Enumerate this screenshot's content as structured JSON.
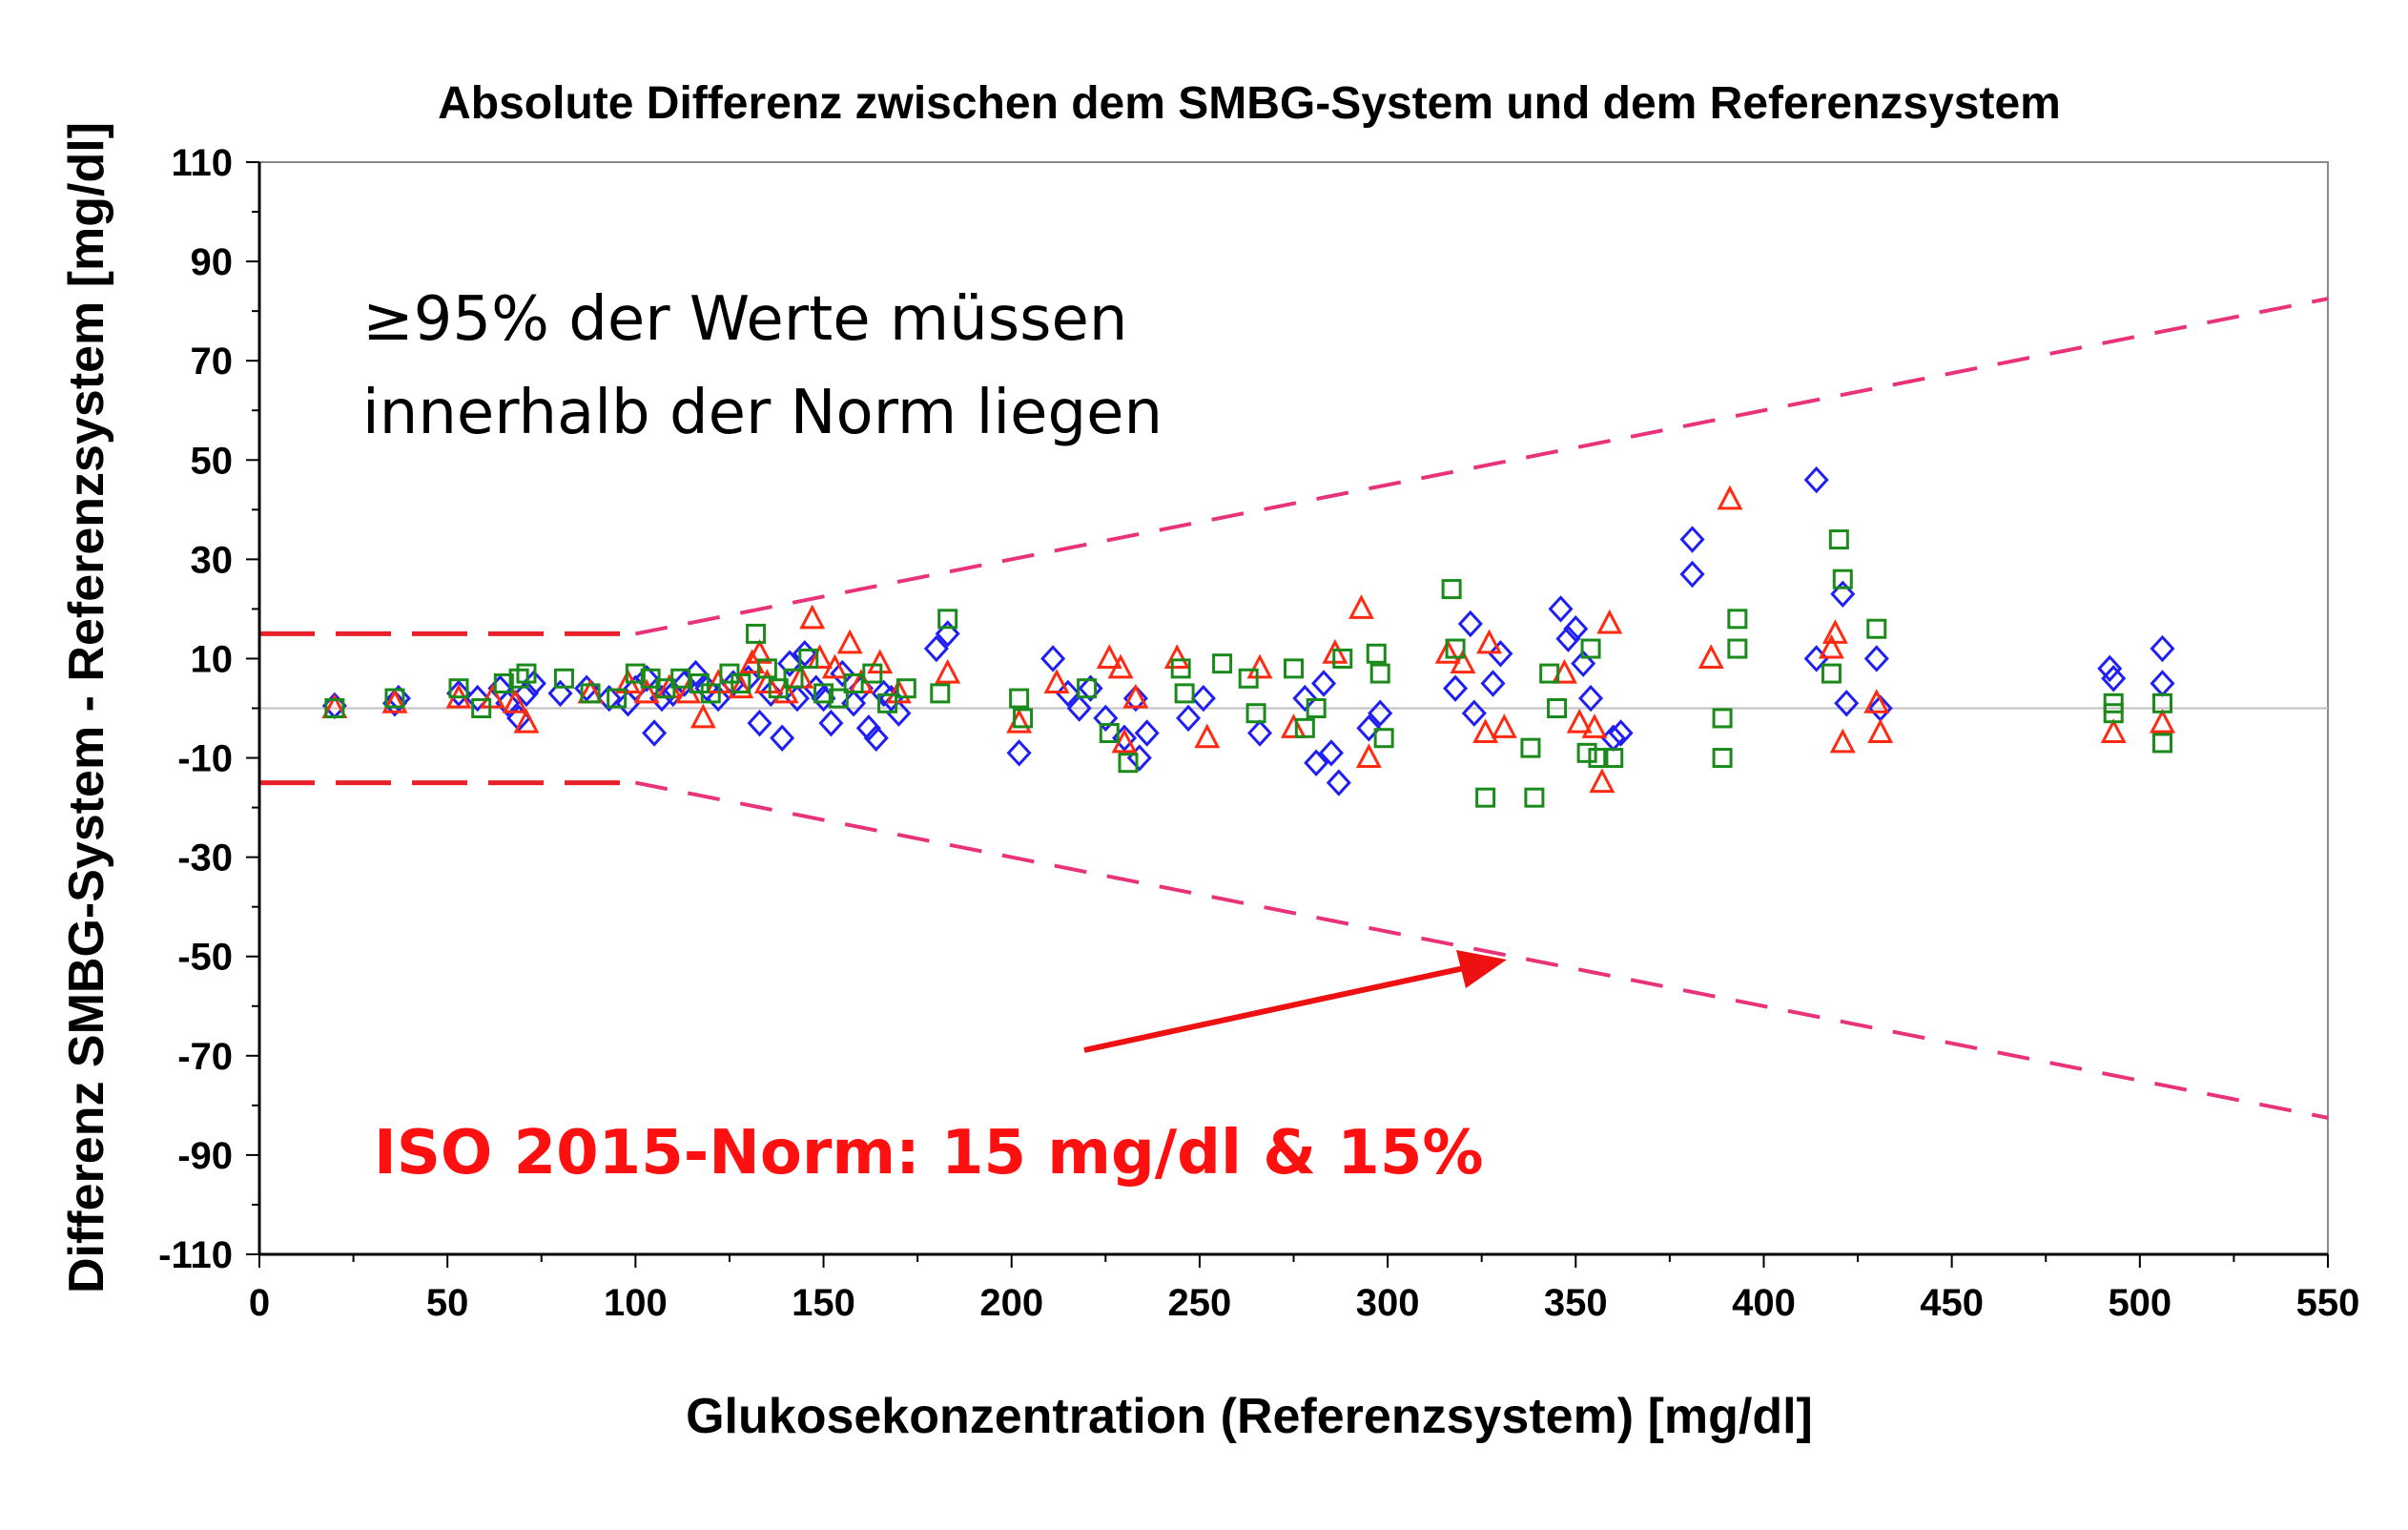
{
  "colors": {
    "diamond": "#1f1ff5",
    "triangle": "#ff2a10",
    "square": "#1a8a1a",
    "limit_line": "#e8327a",
    "limit_flat": "#e8202a",
    "arrow": "#ee1111",
    "norm_text": "#ff1010",
    "zero_line": "#c0c0c0"
  },
  "annotations": {
    "note_line1": "≥95% der Werte müssen",
    "note_line2": "innerhalb der Norm liegen",
    "norm_label": "ISO 2015-Norm: 15 mg/dl & 15%"
  },
  "chart_data": {
    "type": "scatter",
    "title": "Absolute Differenz zwischen dem SMBG-System und dem Referenzsystem",
    "xlabel": "Glukosekonzentration (Referenzsystem) [mg/dl]",
    "ylabel": "Differenz SMBG-System - Referenzsystem [mg/dl]",
    "xlim": [
      0,
      550
    ],
    "ylim": [
      -110,
      110
    ],
    "x_ticks": [
      0,
      50,
      100,
      150,
      200,
      250,
      300,
      350,
      400,
      450,
      500,
      550
    ],
    "y_ticks": [
      110,
      90,
      70,
      50,
      30,
      10,
      -10,
      -30,
      -50,
      -70,
      -90,
      -110
    ],
    "grid": false,
    "limits": {
      "upper": [
        [
          0,
          15
        ],
        [
          100,
          15
        ],
        [
          550,
          82.5
        ]
      ],
      "lower": [
        [
          0,
          -15
        ],
        [
          100,
          -15
        ],
        [
          550,
          -82.5
        ]
      ]
    },
    "series": [
      {
        "marker": "diamond",
        "points": [
          [
            20,
            0.5
          ],
          [
            36,
            1
          ],
          [
            37,
            2
          ],
          [
            53,
            3
          ],
          [
            58,
            2
          ],
          [
            64,
            4
          ],
          [
            66,
            1
          ],
          [
            69,
            -2
          ],
          [
            71,
            3
          ],
          [
            73,
            5
          ],
          [
            80,
            3
          ],
          [
            87,
            4
          ],
          [
            93,
            2
          ],
          [
            98,
            1
          ],
          [
            100,
            4
          ],
          [
            103,
            6
          ],
          [
            105,
            -5
          ],
          [
            107,
            2
          ],
          [
            110,
            3
          ],
          [
            113,
            5
          ],
          [
            116,
            7
          ],
          [
            119,
            4
          ],
          [
            122,
            2
          ],
          [
            126,
            5
          ],
          [
            130,
            6
          ],
          [
            133,
            -3
          ],
          [
            136,
            3
          ],
          [
            139,
            -6
          ],
          [
            141,
            9
          ],
          [
            143,
            2
          ],
          [
            145,
            11
          ],
          [
            148,
            4
          ],
          [
            150,
            2
          ],
          [
            152,
            -3
          ],
          [
            155,
            7
          ],
          [
            158,
            1
          ],
          [
            160,
            4
          ],
          [
            162,
            -4
          ],
          [
            164,
            -6
          ],
          [
            166,
            3
          ],
          [
            168,
            2
          ],
          [
            170,
            -1
          ],
          [
            180,
            12
          ],
          [
            183,
            15
          ],
          [
            202,
            -9
          ],
          [
            211,
            10
          ],
          [
            215,
            3
          ],
          [
            218,
            0
          ],
          [
            221,
            4
          ],
          [
            225,
            -2
          ],
          [
            230,
            -6
          ],
          [
            233,
            2
          ],
          [
            234,
            -10
          ],
          [
            236,
            -5
          ],
          [
            247,
            -2
          ],
          [
            251,
            2
          ],
          [
            266,
            -5
          ],
          [
            278,
            2
          ],
          [
            281,
            -11
          ],
          [
            283,
            5
          ],
          [
            285,
            -9
          ],
          [
            287,
            -15
          ],
          [
            295,
            -4
          ],
          [
            298,
            -1
          ],
          [
            318,
            4
          ],
          [
            322,
            17
          ],
          [
            323,
            -1
          ],
          [
            328,
            5
          ],
          [
            330,
            11
          ],
          [
            346,
            20
          ],
          [
            348,
            14
          ],
          [
            350,
            16
          ],
          [
            352,
            9
          ],
          [
            354,
            2
          ],
          [
            360,
            -6
          ],
          [
            362,
            -5
          ],
          [
            381,
            34
          ],
          [
            381,
            27
          ],
          [
            414,
            46
          ],
          [
            414,
            10
          ],
          [
            421,
            23
          ],
          [
            422,
            1
          ],
          [
            430,
            10
          ],
          [
            431,
            0
          ],
          [
            492,
            8
          ],
          [
            493,
            6
          ],
          [
            506,
            12
          ],
          [
            506,
            5
          ]
        ]
      },
      {
        "marker": "triangle",
        "points": [
          [
            20,
            0
          ],
          [
            36,
            1
          ],
          [
            53,
            2
          ],
          [
            62,
            2
          ],
          [
            68,
            1
          ],
          [
            71,
            -3
          ],
          [
            88,
            3
          ],
          [
            98,
            5
          ],
          [
            103,
            3
          ],
          [
            109,
            4
          ],
          [
            114,
            3
          ],
          [
            118,
            -2
          ],
          [
            122,
            5
          ],
          [
            128,
            4
          ],
          [
            131,
            9
          ],
          [
            133,
            11
          ],
          [
            135,
            5
          ],
          [
            140,
            3
          ],
          [
            144,
            6
          ],
          [
            147,
            18
          ],
          [
            149,
            10
          ],
          [
            153,
            8
          ],
          [
            157,
            13
          ],
          [
            160,
            5
          ],
          [
            165,
            9
          ],
          [
            170,
            3
          ],
          [
            183,
            7
          ],
          [
            202,
            -3
          ],
          [
            212,
            5
          ],
          [
            226,
            10
          ],
          [
            229,
            8
          ],
          [
            230,
            -7
          ],
          [
            233,
            2
          ],
          [
            244,
            10
          ],
          [
            252,
            -6
          ],
          [
            266,
            8
          ],
          [
            275,
            -4
          ],
          [
            286,
            11
          ],
          [
            293,
            20
          ],
          [
            295,
            -10
          ],
          [
            316,
            11
          ],
          [
            320,
            9
          ],
          [
            326,
            -5
          ],
          [
            327,
            13
          ],
          [
            331,
            -4
          ],
          [
            347,
            7
          ],
          [
            351,
            -3
          ],
          [
            355,
            -4
          ],
          [
            357,
            -15
          ],
          [
            359,
            17
          ],
          [
            386,
            10
          ],
          [
            391,
            42
          ],
          [
            418,
            12
          ],
          [
            419,
            15
          ],
          [
            421,
            -7
          ],
          [
            430,
            1
          ],
          [
            431,
            -5
          ],
          [
            493,
            -5
          ],
          [
            506,
            -3
          ]
        ]
      },
      {
        "marker": "square",
        "points": [
          [
            20,
            0
          ],
          [
            36,
            2
          ],
          [
            53,
            4
          ],
          [
            59,
            0
          ],
          [
            65,
            5
          ],
          [
            69,
            6
          ],
          [
            71,
            7
          ],
          [
            81,
            6
          ],
          [
            88,
            3
          ],
          [
            95,
            2
          ],
          [
            100,
            7
          ],
          [
            104,
            6
          ],
          [
            108,
            4
          ],
          [
            112,
            6
          ],
          [
            117,
            5
          ],
          [
            120,
            3
          ],
          [
            125,
            7
          ],
          [
            128,
            5
          ],
          [
            132,
            15
          ],
          [
            135,
            8
          ],
          [
            138,
            4
          ],
          [
            142,
            6
          ],
          [
            146,
            10
          ],
          [
            150,
            3
          ],
          [
            154,
            2
          ],
          [
            158,
            5
          ],
          [
            163,
            7
          ],
          [
            167,
            1
          ],
          [
            172,
            4
          ],
          [
            181,
            3
          ],
          [
            183,
            18
          ],
          [
            202,
            2
          ],
          [
            203,
            -2
          ],
          [
            220,
            4
          ],
          [
            226,
            -5
          ],
          [
            231,
            -11
          ],
          [
            245,
            8
          ],
          [
            246,
            3
          ],
          [
            256,
            9
          ],
          [
            263,
            6
          ],
          [
            265,
            -1
          ],
          [
            275,
            8
          ],
          [
            278,
            -4
          ],
          [
            281,
            0
          ],
          [
            288,
            10
          ],
          [
            297,
            11
          ],
          [
            298,
            7
          ],
          [
            299,
            -6
          ],
          [
            317,
            24
          ],
          [
            318,
            12
          ],
          [
            326,
            -18
          ],
          [
            338,
            -8
          ],
          [
            339,
            -18
          ],
          [
            343,
            7
          ],
          [
            345,
            0
          ],
          [
            353,
            -9
          ],
          [
            354,
            12
          ],
          [
            356,
            -10
          ],
          [
            360,
            -10
          ],
          [
            389,
            -2
          ],
          [
            389,
            -10
          ],
          [
            393,
            12
          ],
          [
            393,
            18
          ],
          [
            418,
            7
          ],
          [
            420,
            34
          ],
          [
            421,
            26
          ],
          [
            430,
            16
          ],
          [
            493,
            -1
          ],
          [
            493,
            1
          ],
          [
            506,
            1
          ],
          [
            506,
            -7
          ]
        ]
      }
    ]
  }
}
